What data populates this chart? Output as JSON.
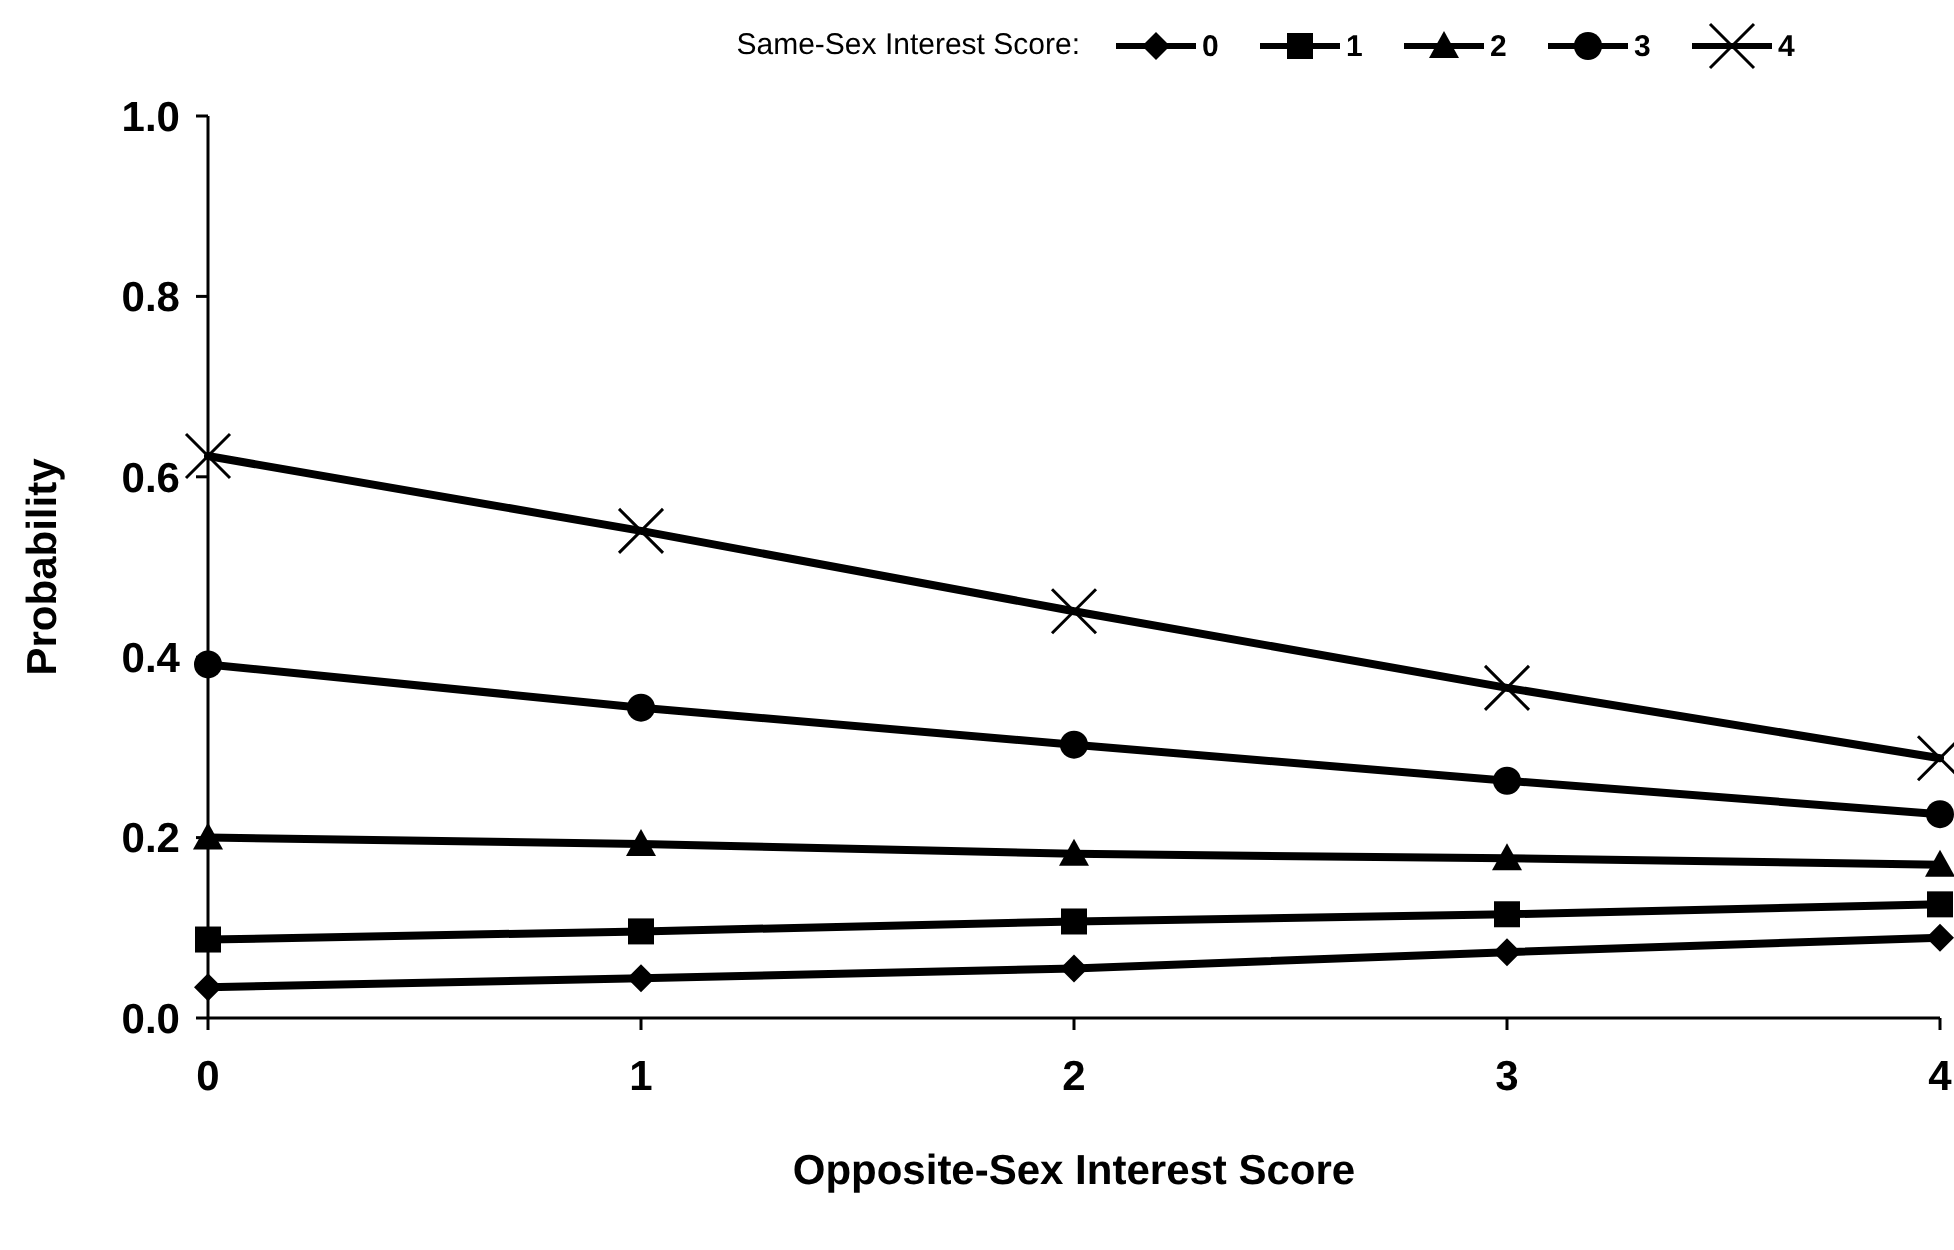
{
  "chart_data": {
    "type": "line",
    "xlabel": "Opposite-Sex Interest Score",
    "ylabel": "Probability",
    "legend_title": "Same-Sex Interest Score:",
    "legend": "top",
    "x": [
      0,
      1,
      2,
      3,
      4
    ],
    "xlim": [
      0,
      4
    ],
    "xticks": [
      0,
      1,
      2,
      3,
      4
    ],
    "ylim": [
      0,
      1
    ],
    "yticks": [
      {
        "value": 0,
        "label": "0.0"
      },
      {
        "value": 0.2,
        "label": "0.2"
      },
      {
        "value": 0.4,
        "label": "0.4"
      },
      {
        "value": 0.6,
        "label": "0.6"
      },
      {
        "value": 0.8,
        "label": "0.8"
      },
      {
        "value": 1,
        "label": "1.0"
      }
    ],
    "grid": false,
    "line_style": "solid",
    "series": [
      {
        "name": "0",
        "color": "#000000",
        "marker": "diamond",
        "values": [
          0.034,
          0.044,
          0.055,
          0.073,
          0.089
        ]
      },
      {
        "name": "1",
        "color": "#000000",
        "marker": "square",
        "values": [
          0.087,
          0.096,
          0.107,
          0.115,
          0.126
        ]
      },
      {
        "name": "2",
        "color": "#000000",
        "marker": "triangle",
        "values": [
          0.2,
          0.193,
          0.182,
          0.177,
          0.17
        ]
      },
      {
        "name": "3",
        "color": "#000000",
        "marker": "circle",
        "values": [
          0.392,
          0.344,
          0.303,
          0.263,
          0.226
        ]
      },
      {
        "name": "4",
        "color": "#000000",
        "marker": "cross",
        "values": [
          0.623,
          0.54,
          0.451,
          0.366,
          0.288
        ]
      }
    ]
  }
}
